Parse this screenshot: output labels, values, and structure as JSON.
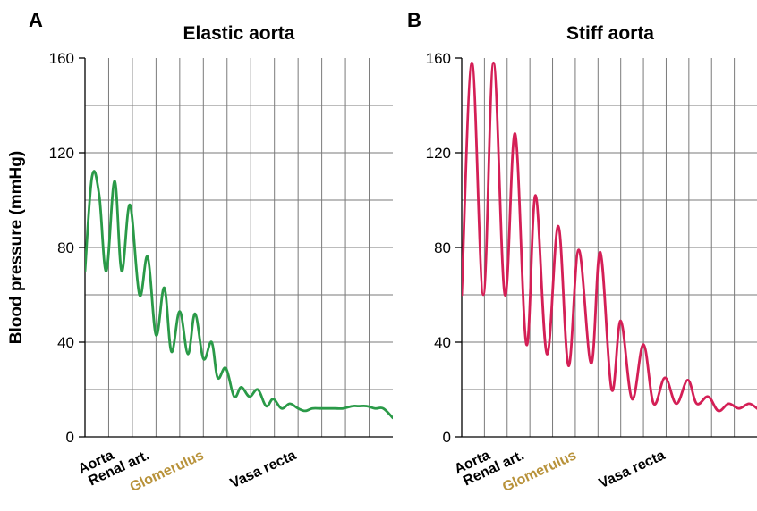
{
  "chart_data": [
    {
      "type": "line",
      "panel": "A",
      "title": "Elastic aorta",
      "ylabel": "Blood pressure (mmHg)",
      "ylim": [
        0,
        160
      ],
      "yticks": [
        0,
        40,
        80,
        120,
        160
      ],
      "grid": true,
      "xlim": [
        0,
        13
      ],
      "x_categories": [
        {
          "label": "Aorta",
          "x": 0.5,
          "color": "#000000"
        },
        {
          "label": "Renal art.",
          "x": 2.0,
          "color": "#000000"
        },
        {
          "label": "Glomerulus",
          "x": 4.3,
          "color": "#b8923a"
        },
        {
          "label": "Vasa recta",
          "x": 8.2,
          "color": "#000000"
        }
      ],
      "series": [
        {
          "color": "#2a9a48",
          "x": [
            0,
            0.3,
            0.6,
            0.9,
            1.25,
            1.55,
            1.9,
            2.3,
            2.65,
            3.0,
            3.35,
            3.65,
            4.0,
            4.35,
            4.65,
            5.0,
            5.35,
            5.6,
            5.95,
            6.3,
            6.6,
            6.95,
            7.3,
            7.65,
            7.95,
            8.3,
            8.65,
            9.0,
            9.3,
            9.6,
            9.95,
            10.25,
            10.55,
            10.9,
            11.3,
            11.55,
            11.9,
            12.25,
            12.6,
            13.0
          ],
          "y": [
            70,
            110,
            102,
            70,
            108,
            70,
            98,
            60,
            76,
            43,
            63,
            36,
            53,
            35,
            52,
            33,
            40,
            25,
            29,
            17,
            21,
            17,
            20,
            13,
            16,
            12,
            14,
            12,
            11,
            12,
            12,
            12,
            12,
            12,
            13,
            13,
            13,
            12,
            12,
            8
          ]
        }
      ]
    },
    {
      "type": "line",
      "panel": "B",
      "title": "Stiff aorta",
      "ylabel": "",
      "ylim": [
        0,
        160
      ],
      "yticks": [
        0,
        40,
        80,
        120,
        160
      ],
      "grid": true,
      "xlim": [
        0,
        13
      ],
      "x_categories": [
        {
          "label": "Aorta",
          "x": 0.5,
          "color": "#000000"
        },
        {
          "label": "Renal art.",
          "x": 2.0,
          "color": "#000000"
        },
        {
          "label": "Glomerulus",
          "x": 4.3,
          "color": "#b8923a"
        },
        {
          "label": "Vasa recta",
          "x": 8.2,
          "color": "#000000"
        }
      ],
      "series": [
        {
          "color": "#d41f56",
          "x": [
            0,
            0.45,
            0.95,
            1.4,
            1.9,
            2.35,
            2.85,
            3.25,
            3.75,
            4.25,
            4.7,
            5.15,
            5.7,
            6.1,
            6.6,
            7.0,
            7.5,
            8.0,
            8.45,
            8.95,
            9.45,
            9.95,
            10.35,
            10.85,
            11.3,
            11.75,
            12.2,
            12.65,
            13.0
          ],
          "y": [
            60,
            158,
            60,
            158,
            60,
            128,
            39,
            102,
            35,
            89,
            30,
            79,
            31,
            78,
            20,
            49,
            16,
            39,
            14,
            25,
            14,
            24,
            14,
            17,
            11,
            14,
            12,
            14,
            12
          ]
        }
      ]
    }
  ]
}
